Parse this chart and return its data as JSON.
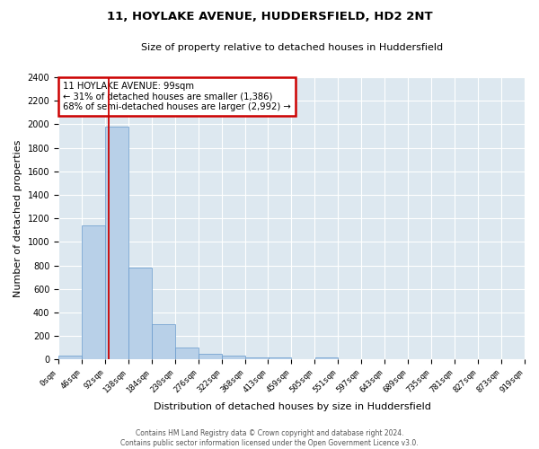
{
  "title": "11, HOYLAKE AVENUE, HUDDERSFIELD, HD2 2NT",
  "subtitle": "Size of property relative to detached houses in Huddersfield",
  "xlabel": "Distribution of detached houses by size in Huddersfield",
  "ylabel": "Number of detached properties",
  "bar_color": "#b8d0e8",
  "bar_edge_color": "#6699cc",
  "background_color": "#dde8f0",
  "bins_left": [
    0,
    46,
    92,
    138,
    184,
    230,
    276,
    322,
    368,
    413,
    459,
    505,
    551,
    597,
    643,
    689,
    735,
    781,
    827,
    873
  ],
  "values": [
    35,
    1140,
    1980,
    780,
    300,
    105,
    45,
    30,
    20,
    15,
    5,
    20,
    0,
    0,
    0,
    0,
    0,
    0,
    0,
    0
  ],
  "bin_width": 46,
  "tick_positions": [
    0,
    46,
    92,
    138,
    184,
    230,
    276,
    322,
    368,
    413,
    459,
    505,
    551,
    597,
    643,
    689,
    735,
    781,
    827,
    873,
    919
  ],
  "tick_labels": [
    "0sqm",
    "46sqm",
    "92sqm",
    "138sqm",
    "184sqm",
    "230sqm",
    "276sqm",
    "322sqm",
    "368sqm",
    "413sqm",
    "459sqm",
    "505sqm",
    "551sqm",
    "597sqm",
    "643sqm",
    "689sqm",
    "735sqm",
    "781sqm",
    "827sqm",
    "873sqm",
    "919sqm"
  ],
  "ylim": [
    0,
    2400
  ],
  "yticks": [
    0,
    200,
    400,
    600,
    800,
    1000,
    1200,
    1400,
    1600,
    1800,
    2000,
    2200,
    2400
  ],
  "xlim": [
    0,
    920
  ],
  "property_size": 99,
  "red_line_color": "#cc0000",
  "annotation_text": "11 HOYLAKE AVENUE: 99sqm\n← 31% of detached houses are smaller (1,386)\n68% of semi-detached houses are larger (2,992) →",
  "annotation_box_facecolor": "#ffffff",
  "annotation_box_edgecolor": "#cc0000",
  "footer_line1": "Contains HM Land Registry data © Crown copyright and database right 2024.",
  "footer_line2": "Contains public sector information licensed under the Open Government Licence v3.0.",
  "grid_color": "#ffffff",
  "title_fontsize": 9.5,
  "subtitle_fontsize": 8,
  "tick_fontsize": 6.5,
  "ylabel_fontsize": 8,
  "xlabel_fontsize": 8,
  "footer_fontsize": 5.5
}
